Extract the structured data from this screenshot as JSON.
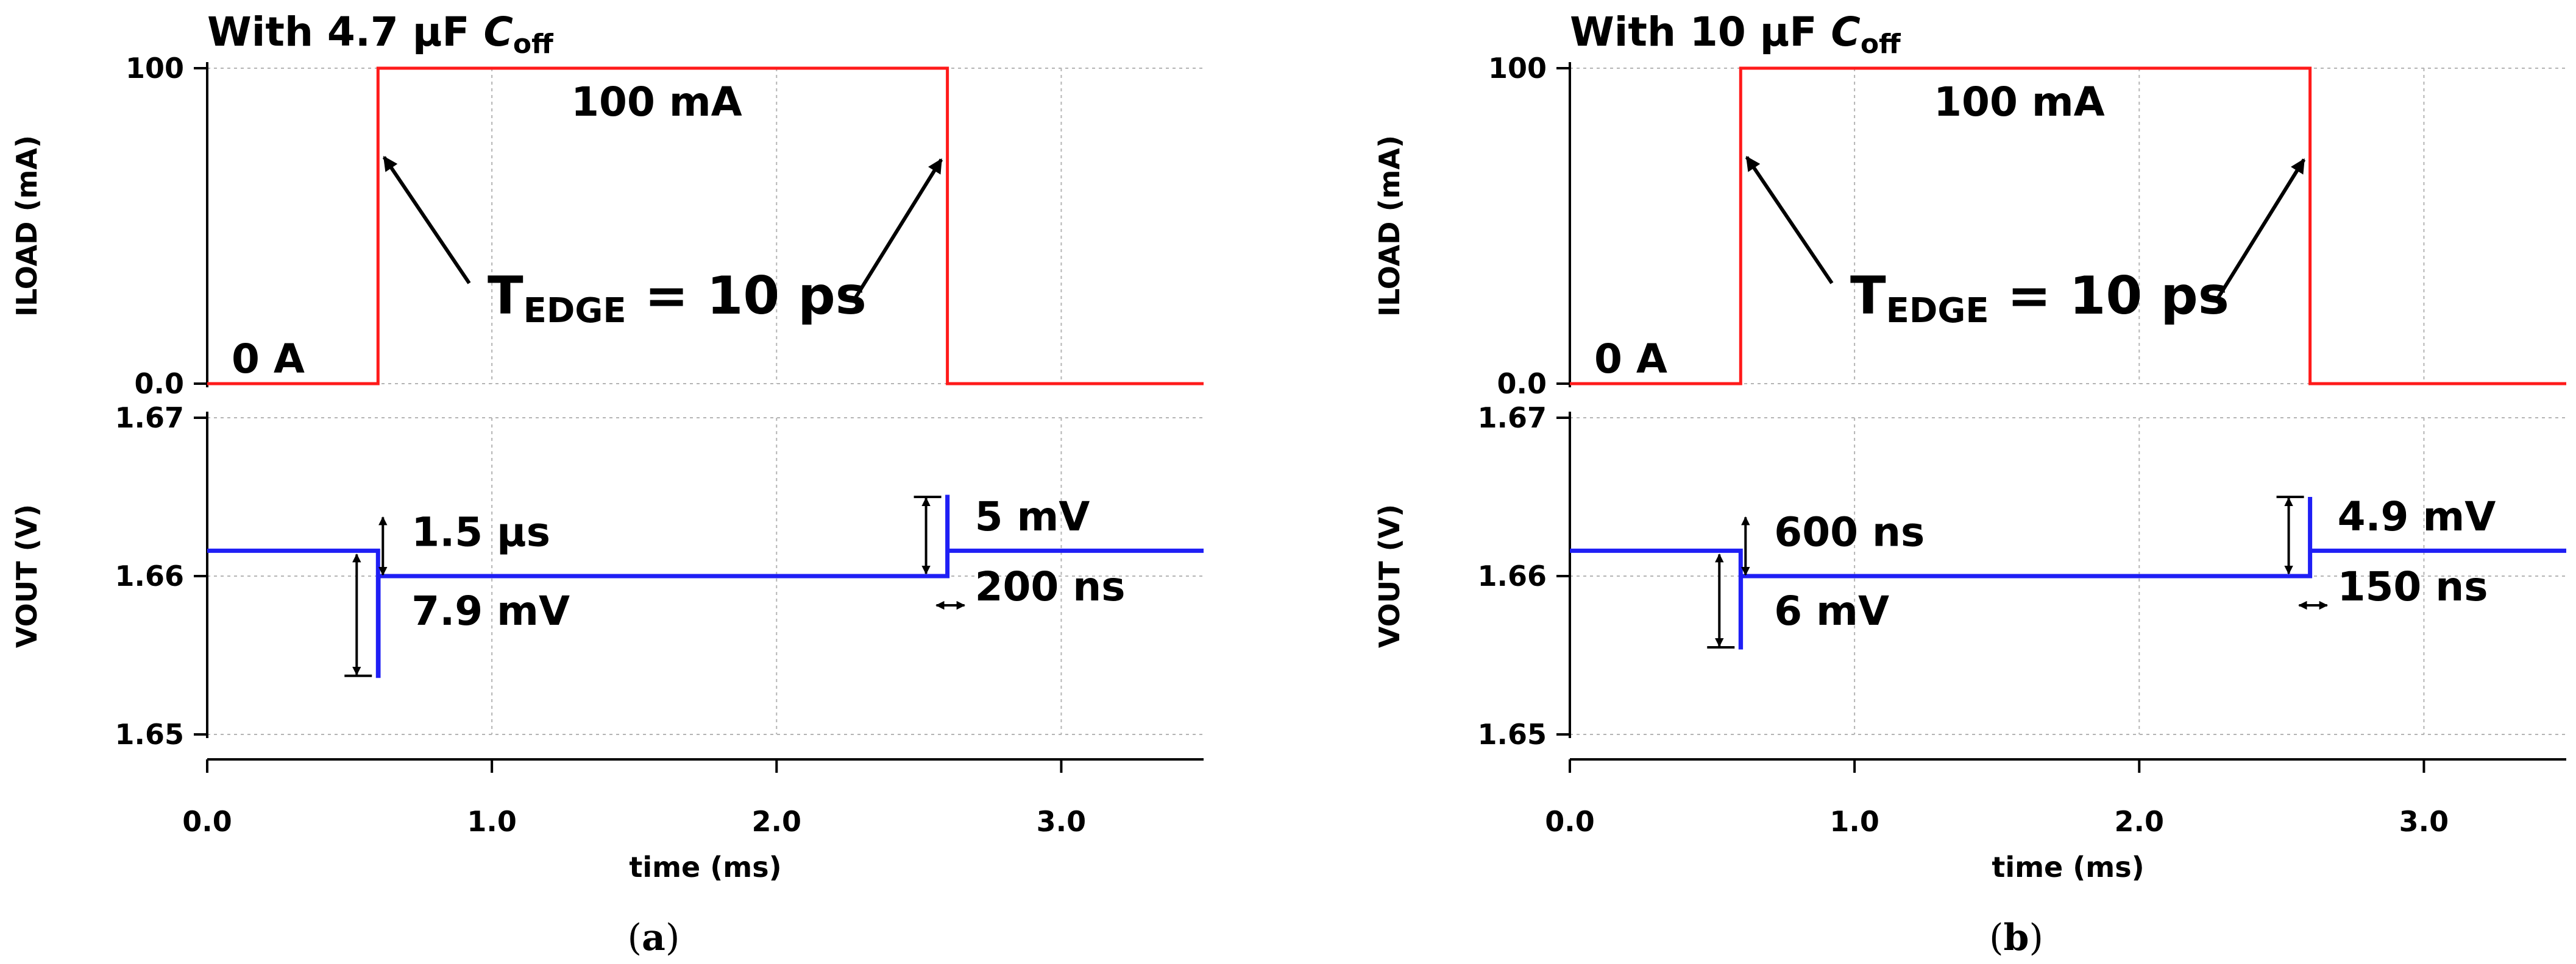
{
  "colors": {
    "current": "#ff1a1a",
    "voltage": "#1f1ff5",
    "text": "#000000",
    "grid": "#b4b4b4"
  },
  "chart_data": [
    {
      "type": "line",
      "caption": "a",
      "title_prefix": "With 4.7 µF ",
      "title_var": "C",
      "title_sub": "off",
      "xlabel": "time (ms)",
      "xlim": [
        0,
        3.5
      ],
      "xticks": [
        "0.0",
        "1.0",
        "2.0",
        "3.0"
      ],
      "xtick_values": [
        0,
        1,
        2,
        3
      ],
      "top": {
        "ylabel": "ILOAD (mA)",
        "ylim": [
          0,
          100
        ],
        "yticks": [
          "0.0",
          "100"
        ],
        "ytick_values": [
          0,
          100
        ],
        "x": [
          0,
          0.6,
          0.6,
          2.6,
          2.6,
          3.5
        ],
        "y": [
          0,
          0,
          100,
          100,
          0,
          0
        ],
        "label_high": "100 mA",
        "label_low": "0 A",
        "edge_label_main": "T",
        "edge_label_sub": "EDGE",
        "edge_label_rest": " = 10 ps"
      },
      "bottom": {
        "ylabel": "VOUT (V)",
        "ylim": [
          1.65,
          1.67
        ],
        "yticks": [
          "1.65",
          "1.66",
          "1.67"
        ],
        "ytick_values": [
          1.65,
          1.66,
          1.67
        ],
        "x": [
          0,
          0.6,
          0.6,
          0.6015,
          0.6015,
          2.6,
          2.6,
          2.6002,
          2.6002,
          3.5
        ],
        "y": [
          1.6616,
          1.6616,
          1.6537,
          1.6537,
          1.66,
          1.66,
          1.665,
          1.665,
          1.6616,
          1.6616
        ],
        "undershoot_label": "7.9 mV",
        "undershoot_time_label": "1.5 µs",
        "overshoot_label": "5 mV",
        "overshoot_time_label": "200 ns"
      }
    },
    {
      "type": "line",
      "caption": "b",
      "title_prefix": "With 10 µF ",
      "title_var": "C",
      "title_sub": "off",
      "xlabel": "time (ms)",
      "xlim": [
        0,
        3.5
      ],
      "xticks": [
        "0.0",
        "1.0",
        "2.0",
        "3.0"
      ],
      "xtick_values": [
        0,
        1,
        2,
        3
      ],
      "top": {
        "ylabel": "ILOAD (mA)",
        "ylim": [
          0,
          100
        ],
        "yticks": [
          "0.0",
          "100"
        ],
        "ytick_values": [
          0,
          100
        ],
        "x": [
          0,
          0.6,
          0.6,
          2.6,
          2.6,
          3.5
        ],
        "y": [
          0,
          0,
          100,
          100,
          0,
          0
        ],
        "label_high": "100 mA",
        "label_low": "0 A",
        "edge_label_main": "T",
        "edge_label_sub": "EDGE",
        "edge_label_rest": " = 10 ps"
      },
      "bottom": {
        "ylabel": "VOUT (V)",
        "ylim": [
          1.65,
          1.67
        ],
        "yticks": [
          "1.65",
          "1.66",
          "1.67"
        ],
        "ytick_values": [
          1.65,
          1.66,
          1.67
        ],
        "x": [
          0,
          0.6,
          0.6,
          0.6006,
          0.6006,
          2.6,
          2.6,
          2.60015,
          2.60015,
          3.5
        ],
        "y": [
          1.6616,
          1.6616,
          1.6555,
          1.6555,
          1.66,
          1.66,
          1.665,
          1.665,
          1.6616,
          1.6616
        ],
        "undershoot_label": "6 mV",
        "undershoot_time_label": "600 ns",
        "overshoot_label": "4.9 mV",
        "overshoot_time_label": "150 ns"
      }
    }
  ]
}
